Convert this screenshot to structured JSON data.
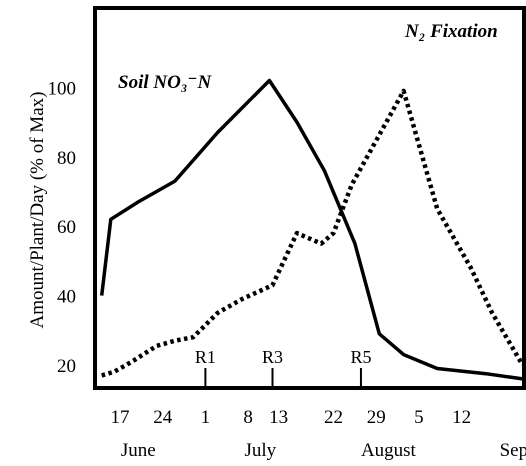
{
  "chart_data": {
    "type": "line",
    "title": "",
    "ylabel": "Amount/Plant/Day (% of Max)",
    "xlabel": "",
    "ylim": [
      13,
      110
    ],
    "xlim": [
      0,
      89
    ],
    "grid": false,
    "y_ticks": [
      20,
      40,
      60,
      80,
      100
    ],
    "x_day_ticks": [
      {
        "label": "17",
        "x": 0
      },
      {
        "label": "24",
        "x": 7
      },
      {
        "label": "1",
        "x": 14
      },
      {
        "label": "8",
        "x": 21
      },
      {
        "label": "13",
        "x": 26
      },
      {
        "label": "22",
        "x": 35
      },
      {
        "label": "29",
        "x": 42
      },
      {
        "label": "5",
        "x": 49
      },
      {
        "label": "12",
        "x": 56
      }
    ],
    "x_month_labels": [
      {
        "label": "June",
        "x": 3
      },
      {
        "label": "July",
        "x": 23
      },
      {
        "label": "August",
        "x": 44
      },
      {
        "label": "Sept",
        "x": 65
      }
    ],
    "stage_markers": [
      {
        "label": "R1",
        "x": 14
      },
      {
        "label": "R3",
        "x": 25
      },
      {
        "label": "R5",
        "x": 39.5
      }
    ],
    "series": [
      {
        "name": "Soil NO₃⁻N",
        "style": "solid",
        "color": "#000000",
        "points": [
          [
            -3,
            40
          ],
          [
            -1.5,
            62
          ],
          [
            3,
            67
          ],
          [
            9,
            73
          ],
          [
            16,
            87
          ],
          [
            24.5,
            102
          ],
          [
            29,
            90
          ],
          [
            33.5,
            76
          ],
          [
            38.5,
            55
          ],
          [
            42.5,
            29
          ],
          [
            46.5,
            23
          ],
          [
            52,
            19
          ],
          [
            60,
            17.5
          ],
          [
            66,
            16
          ]
        ]
      },
      {
        "name": "N₂ Fixation",
        "style": "dotted",
        "color": "#000000",
        "points": [
          [
            -3,
            17
          ],
          [
            -1,
            18
          ],
          [
            2,
            21
          ],
          [
            6,
            25.5
          ],
          [
            9,
            27
          ],
          [
            12,
            28
          ],
          [
            16,
            35
          ],
          [
            20,
            39
          ],
          [
            25,
            43
          ],
          [
            29,
            58
          ],
          [
            33,
            55
          ],
          [
            35,
            58
          ],
          [
            38,
            72
          ],
          [
            46.5,
            99
          ],
          [
            52,
            65
          ],
          [
            57.5,
            48
          ],
          [
            61,
            35
          ],
          [
            66,
            20
          ]
        ]
      }
    ]
  }
}
